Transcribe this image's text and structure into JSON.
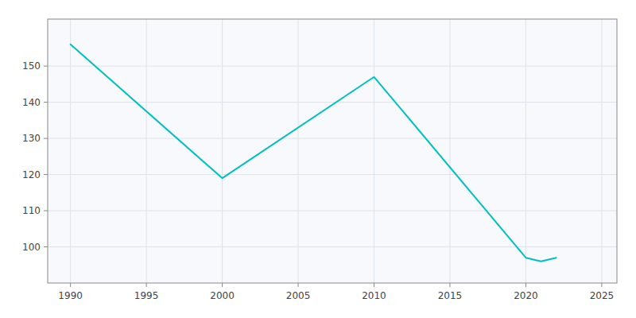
{
  "chart_data": {
    "type": "line",
    "x": [
      1990,
      2000,
      2010,
      2020,
      2021,
      2022
    ],
    "values": [
      156,
      119,
      147,
      97,
      96,
      97
    ],
    "color": "#00BFBF",
    "xlim": [
      1988.5,
      2026
    ],
    "ylim": [
      90,
      163
    ],
    "xticks": [
      1990,
      1995,
      2000,
      2005,
      2010,
      2015,
      2020,
      2025
    ],
    "yticks": [
      100,
      110,
      120,
      130,
      140,
      150
    ],
    "grid": true
  }
}
